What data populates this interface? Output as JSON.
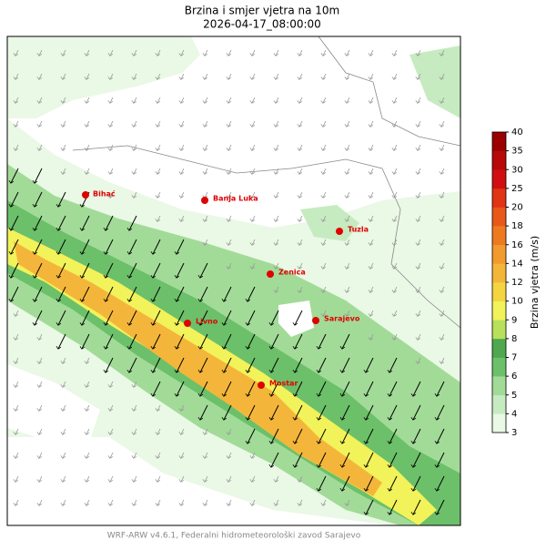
{
  "header": {
    "title": "Brzina i smjer vjetra na 10m",
    "subtitle": "2026-04-17_08:00:00"
  },
  "cities": [
    "Bihać",
    "Banja Luka",
    "Tuzla",
    "Zenica",
    "Sarajevo",
    "Livno",
    "Mostar"
  ],
  "colorbar": {
    "label": "Brzina vjetra (m/s)",
    "levels": [
      3,
      4,
      5,
      6,
      7,
      8,
      9,
      10,
      12,
      14,
      16,
      18,
      20,
      25,
      30,
      35,
      40
    ],
    "colors": [
      "#eaf8e6",
      "#c6ebc0",
      "#a2db98",
      "#6cc06a",
      "#4fa84e",
      "#b8e05a",
      "#f2f25a",
      "#f5d442",
      "#f4b63a",
      "#f29a2e",
      "#ee7a20",
      "#e85818",
      "#e03414",
      "#d01010",
      "#b80808",
      "#9a0000"
    ]
  },
  "footer": "WRF-ARW v4.6.1, Federalni hidrometeorološki zavod Sarajevo"
}
